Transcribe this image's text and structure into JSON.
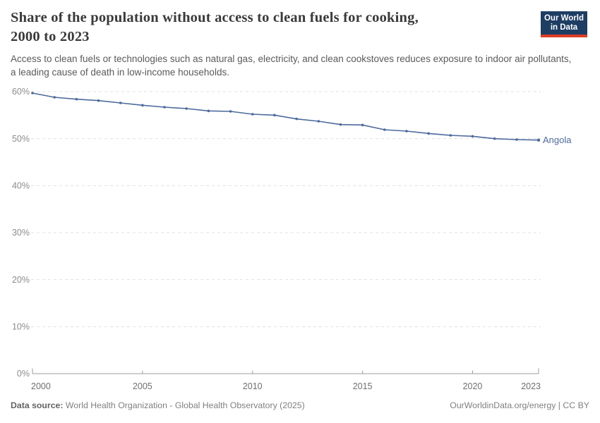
{
  "header": {
    "title_line1": "Share of the population without access to clean fuels for cooking,",
    "title_line2": "2000 to 2023",
    "subtitle": "Access to clean fuels or technologies such as natural gas, electricity, and clean cookstoves reduces exposure to indoor air pollutants, a leading cause of death in low-income households.",
    "logo": {
      "line1": "Our World",
      "line2": "in Data",
      "bg_color": "#1d3d63",
      "accent_color": "#dc3e26"
    }
  },
  "chart_data": {
    "type": "line",
    "title": "Share of the population without access to clean fuels for cooking, 2000 to 2023",
    "x": [
      2000,
      2001,
      2002,
      2003,
      2004,
      2005,
      2006,
      2007,
      2008,
      2009,
      2010,
      2011,
      2012,
      2013,
      2014,
      2015,
      2016,
      2017,
      2018,
      2019,
      2020,
      2021,
      2022,
      2023
    ],
    "series": [
      {
        "name": "Angola",
        "color": "#4c6a9c",
        "values": [
          59.7,
          58.8,
          58.4,
          58.1,
          57.6,
          57.1,
          56.7,
          56.4,
          55.9,
          55.8,
          55.2,
          55.0,
          54.2,
          53.7,
          53.0,
          52.9,
          51.9,
          51.6,
          51.1,
          50.7,
          50.5,
          50.0,
          49.8,
          49.7
        ]
      }
    ],
    "xlabel": "",
    "ylabel": "",
    "xlim": [
      2000,
      2023
    ],
    "ylim": [
      0,
      60
    ],
    "x_ticks": [
      2000,
      2005,
      2010,
      2015,
      2020,
      2023
    ],
    "y_ticks": [
      0,
      10,
      20,
      30,
      40,
      50,
      60
    ],
    "y_tick_suffix": "%",
    "grid": "horizontal-dashed",
    "legend_position": "end-of-line-label",
    "end_label": "Angola"
  },
  "footer": {
    "source_label": "Data source:",
    "source_text": "World Health Organization - Global Health Observatory (2025)",
    "credit": "OurWorldinData.org/energy | CC BY"
  }
}
